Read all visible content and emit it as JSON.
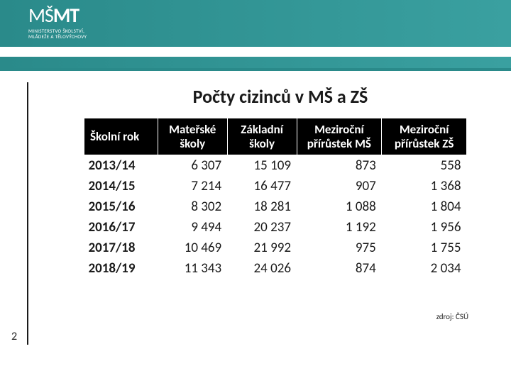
{
  "header": {
    "logo_main": "MŠMT",
    "logo_sub_line1": "MINISTERSTVO ŠKOLSTVÍ,",
    "logo_sub_line2": "MLÁDEŽE A TĚLOVÝCHOVY"
  },
  "slide": {
    "title": "Počty cizinců v MŠ a ZŠ",
    "page_number": "2",
    "source_label": "zdroj: ČSÚ"
  },
  "table": {
    "type": "table",
    "columns": [
      {
        "key": "year",
        "label": "Školní rok",
        "align": "left"
      },
      {
        "key": "ms",
        "label": "Mateřské školy",
        "align": "right"
      },
      {
        "key": "zs",
        "label": "Základní školy",
        "align": "right"
      },
      {
        "key": "g_ms",
        "label": "Meziroční přírůstek MŠ",
        "align": "right"
      },
      {
        "key": "g_zs",
        "label": "Meziroční přírůstek ZŠ",
        "align": "right"
      }
    ],
    "header_bg": "#000000",
    "header_fg": "#ffffff",
    "header_fontsize_pt": 13,
    "body_fontsize_pt": 15,
    "rows": [
      {
        "year": "2013/14",
        "ms": "6 307",
        "zs": "15 109",
        "g_ms": "873",
        "g_zs": "558"
      },
      {
        "year": "2014/15",
        "ms": "7 214",
        "zs": "16 477",
        "g_ms": "907",
        "g_zs": "1 368"
      },
      {
        "year": "2015/16",
        "ms": "8 302",
        "zs": "18 281",
        "g_ms": "1 088",
        "g_zs": "1 804"
      },
      {
        "year": "2016/17",
        "ms": "9 494",
        "zs": "20 237",
        "g_ms": "1 192",
        "g_zs": "1 956"
      },
      {
        "year": "2017/18",
        "ms": "10 469",
        "zs": "21 992",
        "g_ms": "975",
        "g_zs": "1 755"
      },
      {
        "year": "2018/19",
        "ms": "11 343",
        "zs": "24 026",
        "g_ms": "874",
        "g_zs": "2 034"
      }
    ]
  },
  "colors": {
    "header_gradient_from": "#2a8a8a",
    "header_gradient_to": "#3aa0a0",
    "background": "#ffffff",
    "text": "#1a1a1a"
  }
}
